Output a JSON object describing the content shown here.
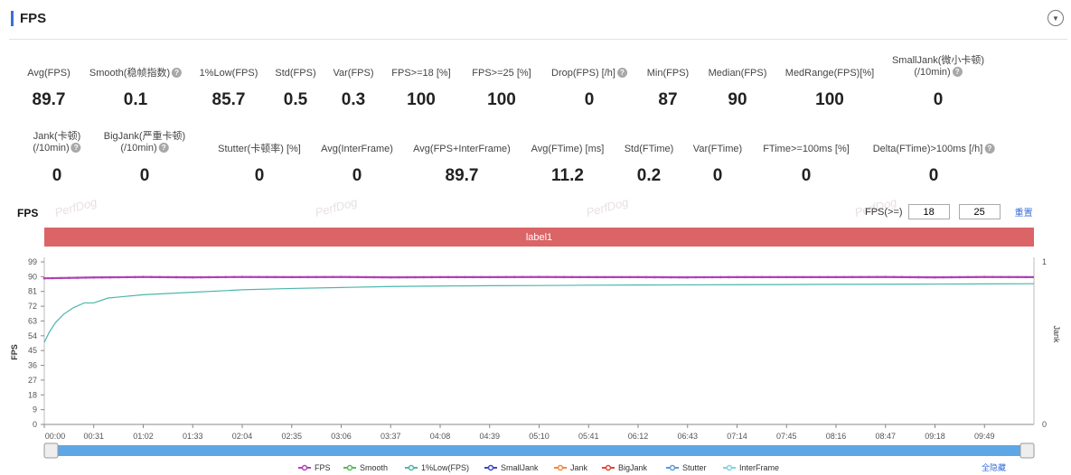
{
  "header": {
    "title": "FPS",
    "collapse_icon": "chevron-down-icon"
  },
  "metrics_row1": [
    {
      "label": "Avg(FPS)",
      "value": "89.7",
      "help": false
    },
    {
      "label": "Smooth(稳帧指数)",
      "value": "0.1",
      "help": true
    },
    {
      "label": "1%Low(FPS)",
      "value": "85.7",
      "help": false
    },
    {
      "label": "Std(FPS)",
      "value": "0.5",
      "help": false
    },
    {
      "label": "Var(FPS)",
      "value": "0.3",
      "help": false
    },
    {
      "label": "FPS>=18 [%]",
      "value": "100",
      "help": false
    },
    {
      "label": "FPS>=25 [%]",
      "value": "100",
      "help": false
    },
    {
      "label": "Drop(FPS) [/h]",
      "value": "0",
      "help": true
    },
    {
      "label": "Min(FPS)",
      "value": "87",
      "help": false
    },
    {
      "label": "Median(FPS)",
      "value": "90",
      "help": false
    },
    {
      "label": "MedRange(FPS)[%]",
      "value": "100",
      "help": false
    },
    {
      "label": "SmallJank(微小卡顿)",
      "label2": "(/10min)",
      "value": "0",
      "help": true
    }
  ],
  "metrics_row2": [
    {
      "label": "Jank(卡顿)",
      "label2": "(/10min)",
      "value": "0",
      "help": true
    },
    {
      "label": "BigJank(严重卡顿)",
      "label2": "(/10min)",
      "value": "0",
      "help": true
    },
    {
      "label": "Stutter(卡顿率) [%]",
      "value": "0",
      "help": false
    },
    {
      "label": "Avg(InterFrame)",
      "value": "0",
      "help": false
    },
    {
      "label": "Avg(FPS+InterFrame)",
      "value": "89.7",
      "help": false
    },
    {
      "label": "Avg(FTime) [ms]",
      "value": "11.2",
      "help": false
    },
    {
      "label": "Std(FTime)",
      "value": "0.2",
      "help": false
    },
    {
      "label": "Var(FTime)",
      "value": "0",
      "help": false
    },
    {
      "label": "FTime>=100ms [%]",
      "value": "0",
      "help": false
    },
    {
      "label": "Delta(FTime)>100ms [/h]",
      "value": "0",
      "help": true
    }
  ],
  "chart": {
    "title": "FPS",
    "filter_label": "FPS(>=)",
    "filter_value_1": "18",
    "filter_value_2": "25",
    "reset_label": "重置",
    "label_bar": "label1",
    "watermark": "PerfDog",
    "ylabel_left": "FPS",
    "ylabel_right": "Jank",
    "show_all_label": "全隐藏"
  },
  "chart_data": {
    "type": "line",
    "x_ticks": [
      "00:00",
      "00:31",
      "01:02",
      "01:33",
      "02:04",
      "02:35",
      "03:06",
      "03:37",
      "04:08",
      "04:39",
      "05:10",
      "05:41",
      "06:12",
      "06:43",
      "07:14",
      "07:45",
      "08:16",
      "08:47",
      "09:18",
      "09:49"
    ],
    "y_ticks": [
      0,
      9,
      18,
      27,
      36,
      45,
      54,
      63,
      72,
      81,
      90,
      99
    ],
    "ylim": [
      0,
      99
    ],
    "y2_ticks": [
      0,
      1
    ],
    "y2lim": [
      0,
      1
    ],
    "xlim_seconds": [
      0,
      620
    ],
    "series": [
      {
        "name": "FPS",
        "color": "#b041b6",
        "points": [
          [
            0,
            89
          ],
          [
            31,
            89.5
          ],
          [
            62,
            89.8
          ],
          [
            93,
            89.6
          ],
          [
            124,
            89.8
          ],
          [
            155,
            89.7
          ],
          [
            186,
            89.8
          ],
          [
            217,
            89.6
          ],
          [
            248,
            89.7
          ],
          [
            279,
            89.7
          ],
          [
            310,
            89.8
          ],
          [
            341,
            89.7
          ],
          [
            372,
            89.7
          ],
          [
            403,
            89.6
          ],
          [
            434,
            89.7
          ],
          [
            465,
            89.7
          ],
          [
            496,
            89.7
          ],
          [
            527,
            89.8
          ],
          [
            558,
            89.6
          ],
          [
            589,
            89.8
          ],
          [
            620,
            89.7
          ]
        ]
      },
      {
        "name": "Smooth",
        "color": "#5cb85c",
        "points": []
      },
      {
        "name": "1%Low(FPS)",
        "color": "#4db6ac",
        "points": [
          [
            0,
            50
          ],
          [
            3,
            56
          ],
          [
            7,
            62
          ],
          [
            12,
            67
          ],
          [
            18,
            71
          ],
          [
            25,
            74
          ],
          [
            31,
            74
          ],
          [
            40,
            77
          ],
          [
            62,
            79
          ],
          [
            93,
            80.5
          ],
          [
            124,
            82
          ],
          [
            155,
            82.8
          ],
          [
            186,
            83.4
          ],
          [
            217,
            84
          ],
          [
            248,
            84.3
          ],
          [
            279,
            84.5
          ],
          [
            310,
            84.6
          ],
          [
            341,
            84.8
          ],
          [
            372,
            84.9
          ],
          [
            403,
            85
          ],
          [
            434,
            85.1
          ],
          [
            465,
            85.2
          ],
          [
            496,
            85.3
          ],
          [
            527,
            85.4
          ],
          [
            558,
            85.5
          ],
          [
            589,
            85.6
          ],
          [
            620,
            85.7
          ]
        ]
      },
      {
        "name": "SmallJank",
        "color": "#3c48c8",
        "points": []
      },
      {
        "name": "Jank",
        "color": "#f0883e",
        "points": []
      },
      {
        "name": "BigJank",
        "color": "#e0453c",
        "points": []
      },
      {
        "name": "Stutter",
        "color": "#5b9bd5",
        "points": []
      },
      {
        "name": "InterFrame",
        "color": "#7fd3df",
        "points": []
      }
    ]
  }
}
